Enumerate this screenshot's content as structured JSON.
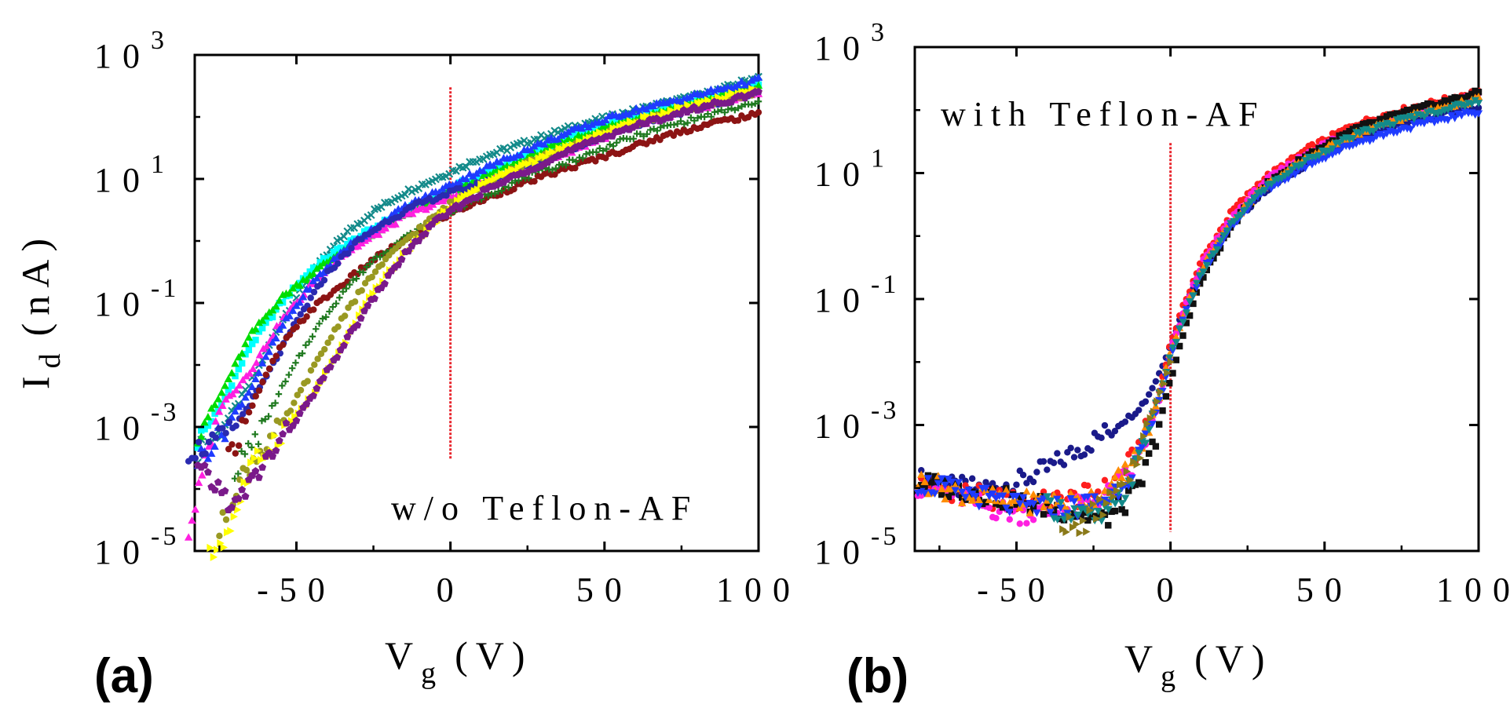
{
  "chart_data": [
    {
      "type": "scatter",
      "panel_label": "(a)",
      "annotation": "w/o Teflon-AF",
      "xlabel": "V",
      "xlabel_sub": "g",
      "xlabel_unit": "(V)",
      "ylabel": "I",
      "ylabel_sub": "d",
      "ylabel_unit": "(nA)",
      "yscale": "log",
      "xlim": [
        -83,
        100
      ],
      "ylim": [
        1e-05,
        1000
      ],
      "xticks": [
        -50,
        0,
        50,
        100
      ],
      "xtick_labels": [
        "-50",
        "0",
        "50",
        "100"
      ],
      "yticks": [
        1e-05,
        0.001,
        0.1,
        10,
        1000
      ],
      "ytick_labels": [
        {
          "base": "10",
          "exp": "-5"
        },
        {
          "base": "10",
          "exp": "-3"
        },
        {
          "base": "10",
          "exp": "-1"
        },
        {
          "base": "10",
          "exp": "1"
        },
        {
          "base": "10",
          "exp": "3"
        }
      ],
      "reference_line": {
        "x": 0,
        "y_range": [
          0.0003,
          300
        ],
        "color": "#e8222a"
      },
      "series": [
        {
          "name": "s1",
          "color": "#138a8a",
          "marker": "x",
          "x": [
            -82,
            -75,
            -65,
            -55,
            -45,
            -35,
            -25,
            -15,
            -5,
            0,
            10,
            25,
            40,
            55,
            70,
            85,
            100
          ],
          "y": [
            0.0004,
            0.0008,
            0.005,
            0.05,
            0.3,
            1.2,
            3,
            6,
            10,
            13,
            22,
            40,
            70,
            110,
            170,
            250,
            450
          ]
        },
        {
          "name": "s2",
          "color": "#00ffff",
          "marker": "square",
          "x": [
            -82,
            -75,
            -65,
            -55,
            -45,
            -35,
            -25,
            -15,
            -5,
            0,
            10,
            25,
            40,
            55,
            70,
            85,
            100
          ],
          "y": [
            0.0006,
            0.002,
            0.02,
            0.1,
            0.35,
            0.8,
            1.6,
            3,
            5,
            7,
            12,
            25,
            50,
            90,
            140,
            210,
            330
          ]
        },
        {
          "name": "s3",
          "color": "#00dd00",
          "marker": "triangle",
          "x": [
            -82,
            -75,
            -65,
            -55,
            -45,
            -35,
            -25,
            -15,
            -5,
            0,
            10,
            25,
            40,
            55,
            70,
            85,
            100
          ],
          "y": [
            0.0008,
            0.003,
            0.03,
            0.12,
            0.3,
            0.7,
            1.3,
            2.5,
            4.5,
            6,
            10,
            22,
            45,
            80,
            130,
            200,
            300
          ]
        },
        {
          "name": "s4",
          "color": "#ff1fe0",
          "marker": "triangle",
          "x": [
            -85,
            -75,
            -65,
            -55,
            -45,
            -35,
            -25,
            -15,
            -5,
            0,
            10,
            25,
            40,
            55,
            70,
            85,
            100
          ],
          "y": [
            2e-05,
            0.002,
            0.008,
            0.05,
            0.2,
            0.6,
            1.2,
            2.5,
            4,
            5,
            8,
            15,
            30,
            60,
            100,
            160,
            250
          ]
        },
        {
          "name": "s5",
          "color": "#1f3bff",
          "marker": "triangle",
          "x": [
            -82,
            -75,
            -65,
            -55,
            -45,
            -35,
            -25,
            -15,
            -5,
            0,
            10,
            25,
            40,
            55,
            70,
            85,
            100
          ],
          "y": [
            0.0003,
            0.0007,
            0.004,
            0.04,
            0.2,
            0.7,
            1.6,
            3.5,
            6,
            8,
            14,
            30,
            60,
            110,
            170,
            260,
            400
          ]
        },
        {
          "name": "s6",
          "color": "#2a2ab0",
          "marker": "circle",
          "x": [
            -85,
            -78,
            -70,
            -60,
            -50,
            -40,
            -30,
            -20,
            -10,
            0,
            15,
            30,
            45,
            60,
            75,
            90,
            100
          ],
          "y": [
            0.0004,
            0.0005,
            0.001,
            0.006,
            0.05,
            0.3,
            1,
            2.2,
            4,
            6,
            10,
            20,
            40,
            75,
            120,
            190,
            260
          ]
        },
        {
          "name": "s7",
          "color": "#8c1414",
          "marker": "circle",
          "x": [
            -72,
            -65,
            -55,
            -45,
            -35,
            -25,
            -15,
            -5,
            0,
            10,
            25,
            40,
            55,
            70,
            85,
            100
          ],
          "y": [
            0.0003,
            0.002,
            0.02,
            0.08,
            0.2,
            0.5,
            1,
            2,
            2.8,
            4.5,
            9,
            16,
            28,
            50,
            80,
            110
          ]
        },
        {
          "name": "s8",
          "color": "#207a20",
          "marker": "plus",
          "x": [
            -70,
            -62,
            -55,
            -45,
            -35,
            -25,
            -15,
            -5,
            0,
            10,
            25,
            40,
            55,
            70,
            85,
            100
          ],
          "y": [
            0.0002,
            0.0008,
            0.004,
            0.03,
            0.15,
            0.5,
            1.1,
            2.2,
            3,
            5,
            11,
            20,
            40,
            70,
            110,
            170
          ]
        },
        {
          "name": "s9",
          "color": "#999922",
          "marker": "circle",
          "x": [
            -75,
            -70,
            -62,
            -55,
            -45,
            -35,
            -25,
            -15,
            -5,
            0,
            10,
            25,
            40,
            55,
            70,
            85,
            100
          ],
          "y": [
            2e-05,
            0.0001,
            0.0004,
            0.001,
            0.008,
            0.06,
            0.3,
            1,
            2.5,
            4,
            8,
            18,
            35,
            65,
            110,
            170,
            260
          ]
        },
        {
          "name": "s10",
          "color": "#ffff00",
          "marker": "triangle-right",
          "x": [
            -78,
            -72,
            -65,
            -55,
            -45,
            -35,
            -25,
            -15,
            -5,
            0,
            10,
            25,
            40,
            55,
            70,
            85,
            100
          ],
          "y": [
            8e-06,
            2e-05,
            0.0002,
            0.0008,
            0.003,
            0.02,
            0.15,
            0.6,
            2,
            3.5,
            8,
            18,
            35,
            70,
            120,
            190,
            280
          ]
        },
        {
          "name": "s11",
          "color": "#7a1a8a",
          "marker": "pentagon",
          "x": [
            -82,
            -75,
            -70,
            -62,
            -55,
            -45,
            -35,
            -25,
            -15,
            -5,
            0,
            10,
            25,
            40,
            55,
            70,
            85,
            100
          ],
          "y": [
            0.0002,
            0.0001,
            5e-05,
            0.0002,
            0.0006,
            0.003,
            0.02,
            0.12,
            0.6,
            2,
            3,
            6,
            14,
            30,
            60,
            100,
            160,
            240
          ]
        }
      ]
    },
    {
      "type": "scatter",
      "panel_label": "(b)",
      "annotation": "with Teflon-AF",
      "xlabel": "V",
      "xlabel_sub": "g",
      "xlabel_unit": "(V)",
      "yscale": "log",
      "xlim": [
        -83,
        100
      ],
      "ylim": [
        1e-05,
        1000
      ],
      "xticks": [
        -50,
        0,
        50,
        100
      ],
      "xtick_labels": [
        "-50",
        "0",
        "50",
        "100"
      ],
      "yticks": [
        1e-05,
        0.001,
        0.1,
        10,
        1000
      ],
      "ytick_labels": [
        {
          "base": "10",
          "exp": "-5"
        },
        {
          "base": "10",
          "exp": "-3"
        },
        {
          "base": "10",
          "exp": "-1"
        },
        {
          "base": "10",
          "exp": "1"
        },
        {
          "base": "10",
          "exp": "3"
        }
      ],
      "reference_line": {
        "x": 0,
        "y_range": [
          2e-05,
          30
        ],
        "color": "#e8222a"
      },
      "series": [
        {
          "name": "s1",
          "color": "#1a1a8a",
          "marker": "circle",
          "x": [
            -82,
            -70,
            -60,
            -50,
            -40,
            -30,
            -20,
            -12,
            -8,
            -4,
            0,
            5,
            10,
            20,
            30,
            45,
            60,
            75,
            90,
            100
          ],
          "y": [
            0.00014,
            0.0001,
            0.0001,
            0.00012,
            0.0002,
            0.0004,
            0.0008,
            0.0015,
            0.0025,
            0.006,
            0.02,
            0.08,
            0.3,
            1.5,
            5,
            15,
            35,
            60,
            90,
            110
          ]
        },
        {
          "name": "s2",
          "color": "#ff1e1e",
          "marker": "circle",
          "x": [
            -82,
            -70,
            -60,
            -50,
            -40,
            -30,
            -20,
            -12,
            -8,
            -4,
            0,
            5,
            10,
            20,
            30,
            45,
            60,
            75,
            90,
            100
          ],
          "y": [
            0.00012,
            9e-05,
            7e-05,
            6e-05,
            6e-05,
            7e-05,
            0.0001,
            0.0003,
            0.0008,
            0.003,
            0.02,
            0.1,
            0.4,
            2.5,
            8,
            25,
            60,
            100,
            150,
            200
          ]
        },
        {
          "name": "s3",
          "color": "#ff1fe0",
          "marker": "circle",
          "x": [
            -82,
            -70,
            -60,
            -50,
            -40,
            -30,
            -20,
            -12,
            -8,
            -4,
            0,
            5,
            10,
            20,
            30,
            45,
            60,
            75,
            90,
            100
          ],
          "y": [
            0.00011,
            8e-05,
            5e-05,
            4e-05,
            4e-05,
            5e-05,
            8e-05,
            0.0002,
            0.0006,
            0.002,
            0.015,
            0.08,
            0.35,
            2,
            7,
            22,
            50,
            85,
            130,
            170
          ]
        },
        {
          "name": "s4",
          "color": "#111111",
          "marker": "square",
          "x": [
            -82,
            -70,
            -60,
            -50,
            -40,
            -30,
            -22,
            -16,
            -10,
            -6,
            0,
            5,
            10,
            20,
            30,
            45,
            60,
            75,
            90,
            100
          ],
          "y": [
            0.00012,
            0.0001,
            8e-05,
            6e-05,
            5e-05,
            4e-05,
            3e-05,
            5e-05,
            0.0001,
            0.0004,
            0.005,
            0.04,
            0.2,
            1.5,
            6,
            20,
            50,
            90,
            140,
            190
          ]
        },
        {
          "name": "s5",
          "color": "#ff8c00",
          "marker": "triangle",
          "x": [
            -82,
            -70,
            -60,
            -50,
            -40,
            -30,
            -20,
            -12,
            -8,
            -4,
            0,
            5,
            10,
            20,
            30,
            45,
            60,
            75,
            90,
            100
          ],
          "y": [
            0.00013,
            9e-05,
            7e-05,
            6e-05,
            6e-05,
            6e-05,
            9e-05,
            0.00025,
            0.0007,
            0.0025,
            0.015,
            0.07,
            0.3,
            1.8,
            6,
            18,
            42,
            75,
            115,
            150
          ]
        },
        {
          "name": "s6",
          "color": "#1f3bff",
          "marker": "triangle-down",
          "x": [
            -82,
            -70,
            -60,
            -50,
            -40,
            -30,
            -20,
            -12,
            -8,
            -4,
            0,
            5,
            10,
            20,
            30,
            45,
            60,
            75,
            90,
            100
          ],
          "y": [
            0.00012,
            9e-05,
            7e-05,
            5e-05,
            5e-05,
            5e-05,
            7e-05,
            0.0002,
            0.0005,
            0.002,
            0.012,
            0.06,
            0.25,
            1.5,
            5,
            14,
            30,
            50,
            75,
            95
          ]
        },
        {
          "name": "s7",
          "color": "#138a8a",
          "marker": "triangle-down",
          "x": [
            -40,
            -30,
            -25,
            -20,
            -15,
            -10,
            -5,
            0,
            5,
            10,
            20,
            30,
            45,
            60,
            75,
            90,
            100
          ],
          "y": [
            5e-05,
            4e-05,
            3e-05,
            4e-05,
            8e-05,
            0.0003,
            0.002,
            0.012,
            0.06,
            0.25,
            1.6,
            5.5,
            17,
            40,
            70,
            105,
            140
          ]
        },
        {
          "name": "s8",
          "color": "#8a7a1a",
          "marker": "triangle-right",
          "x": [
            -35,
            -30,
            -25,
            -20,
            -15,
            -10,
            -5,
            0
          ],
          "y": [
            3e-05,
            2e-05,
            4e-05,
            6e-05,
            0.0001,
            0.0004,
            0.002,
            0.01
          ]
        }
      ]
    }
  ]
}
